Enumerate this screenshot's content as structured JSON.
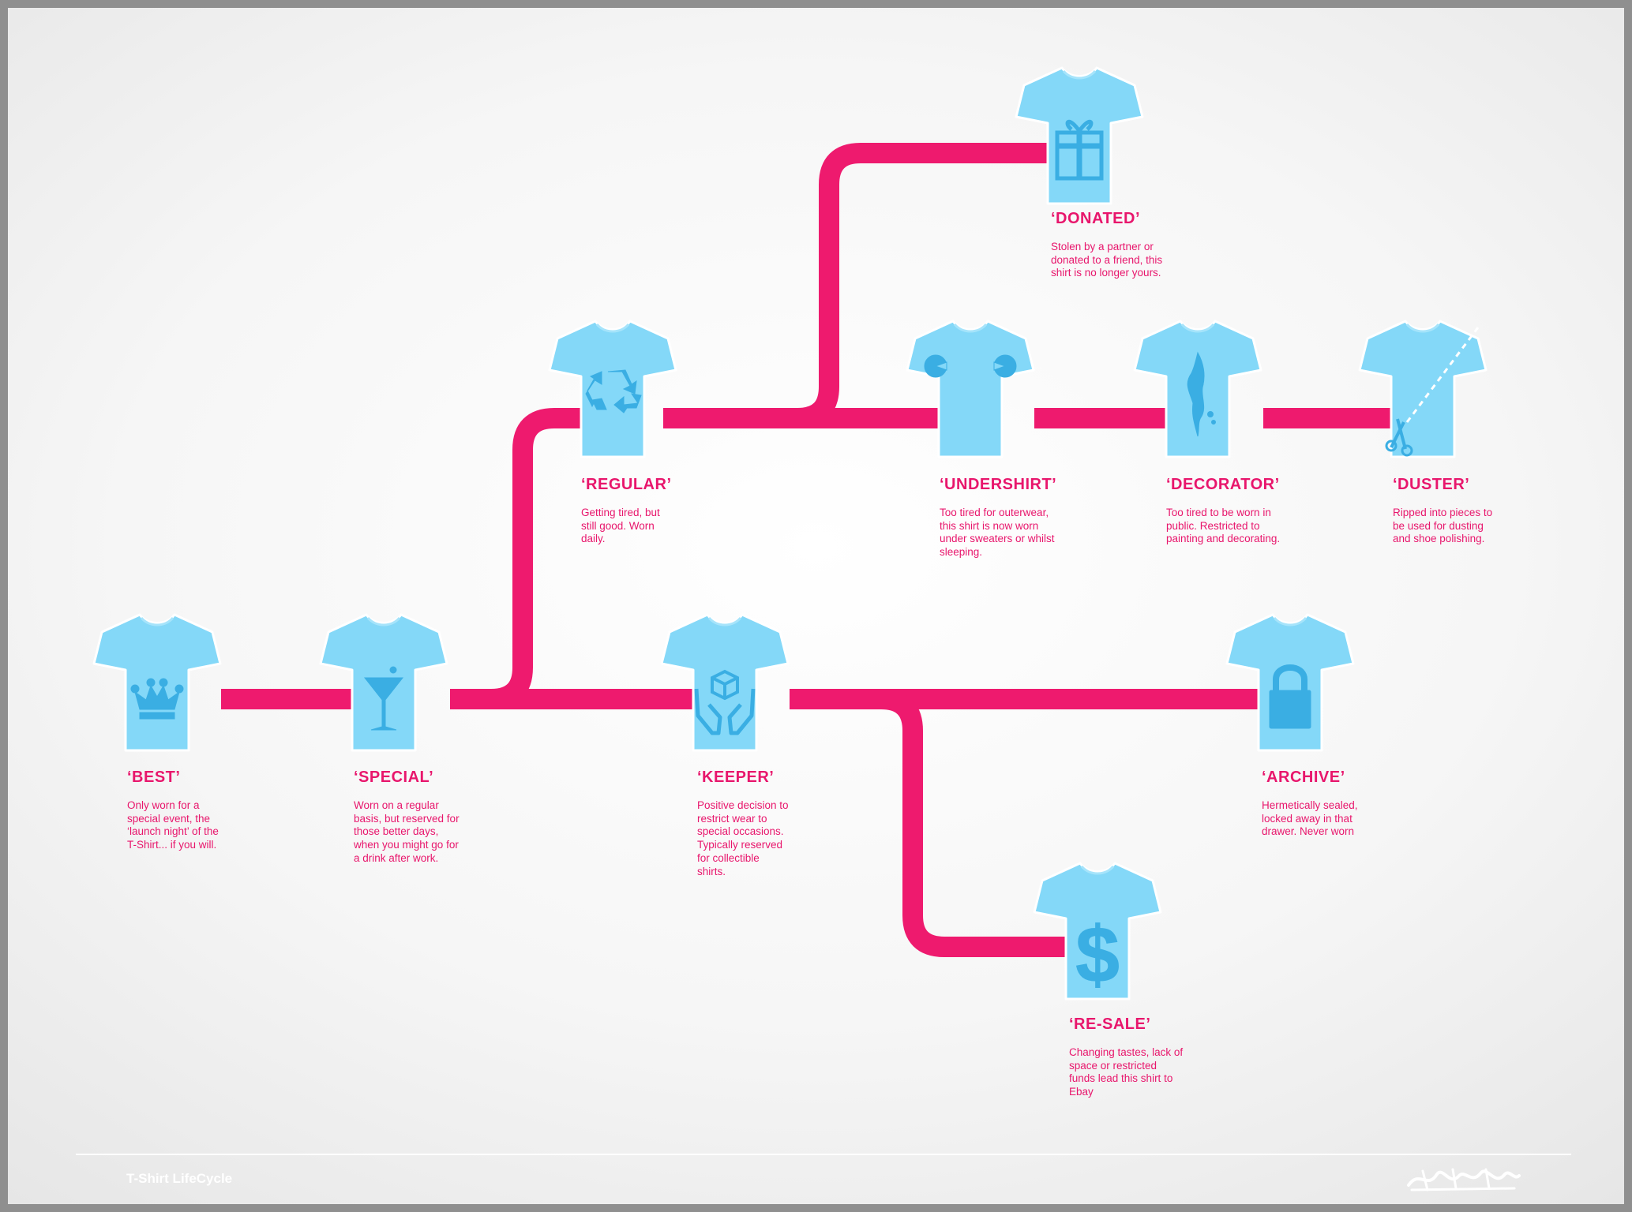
{
  "diagram": {
    "colors": {
      "path": "#ee1a6e",
      "shirt": "#84d8f8",
      "shirt_icon": "#3aaee3",
      "text": "#e8166c"
    },
    "nodes": [
      {
        "id": "best",
        "icon": "crown-icon",
        "title": "‘BEST’",
        "desc": "Only worn for a special event, the ‘launch night’ of the T-Shirt... if you will."
      },
      {
        "id": "special",
        "icon": "cocktail-icon",
        "title": "‘SPECIAL’",
        "desc": "Worn on a regular basis, but reserved for those better days, when you might go for a drink after work."
      },
      {
        "id": "regular",
        "icon": "recycle-icon",
        "title": "‘REGULAR’",
        "desc": "Getting tired, but still good. Worn daily."
      },
      {
        "id": "donated",
        "icon": "gift-icon",
        "title": "‘DONATED’",
        "desc": "Stolen by a partner or donated to a friend, this shirt is no longer yours."
      },
      {
        "id": "undershirt",
        "icon": "moth-holes-icon",
        "title": "‘UNDERSHIRT’",
        "desc": "Too tired for outerwear, this shirt is now worn under sweaters or whilst sleeping."
      },
      {
        "id": "decorator",
        "icon": "paint-drip-icon",
        "title": "‘DECORATOR’",
        "desc": "Too tired to be worn in public. Restricted to painting and decorating."
      },
      {
        "id": "duster",
        "icon": "scissors-icon",
        "title": "‘DUSTER’",
        "desc": "Ripped into pieces to be used for dusting and shoe polishing."
      },
      {
        "id": "keeper",
        "icon": "hands-box-icon",
        "title": "‘KEEPER’",
        "desc": "Positive decision to restrict wear to special occasions. Typically reserved for collectible shirts."
      },
      {
        "id": "archive",
        "icon": "padlock-icon",
        "title": "‘ARCHIVE’",
        "desc": "Hermetically sealed, locked away in that drawer. Never worn"
      },
      {
        "id": "resale",
        "icon": "dollar-icon",
        "title": "‘RE-SALE’",
        "desc": "Changing tastes, lack of space or restricted funds lead this shirt to Ebay"
      }
    ],
    "edges": [
      [
        "best",
        "special"
      ],
      [
        "special",
        "regular"
      ],
      [
        "special",
        "keeper"
      ],
      [
        "regular",
        "donated"
      ],
      [
        "regular",
        "undershirt"
      ],
      [
        "undershirt",
        "decorator"
      ],
      [
        "decorator",
        "duster"
      ],
      [
        "keeper",
        "archive"
      ],
      [
        "keeper",
        "resale"
      ]
    ]
  },
  "footer": {
    "title": "T-Shirt LifeCycle",
    "signature": "signature-mark"
  }
}
